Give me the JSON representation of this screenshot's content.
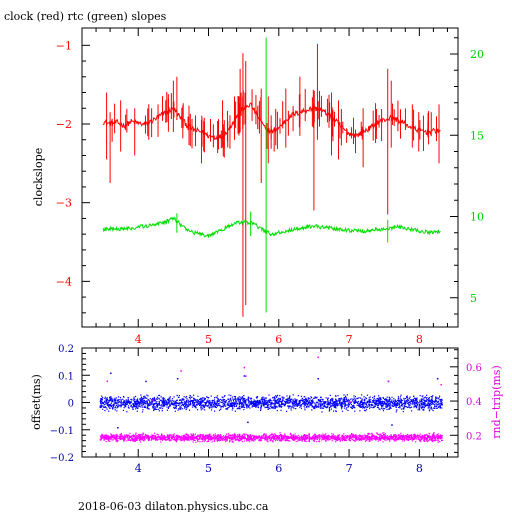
{
  "footer": "2018-06-03  dilaton.physics.ubc.ca",
  "colors": {
    "clock": "#ff0000",
    "rtc": "#00dd00",
    "offset": "#0000ff",
    "roundtrip": "#ff00ff",
    "axis_left_top": "#ff0000",
    "axis_right_top": "#00cc00",
    "axis_left_bottom": "#0000aa",
    "axis_right_bottom": "#dd00dd"
  },
  "chart_data": [
    {
      "type": "line",
      "title": "clock (red) rtc (green) slopes",
      "xlabel": "",
      "ylabel": "clockslope",
      "y2label": "",
      "xlim": [
        3.2,
        8.55
      ],
      "ylim": [
        -4.58,
        -0.78
      ],
      "y2lim": [
        3.2,
        21.6
      ],
      "xticks": [
        4,
        5,
        6,
        7,
        8
      ],
      "yticks": [
        -1,
        -2,
        -3,
        -4
      ],
      "y2ticks": [
        5,
        10,
        15,
        20
      ],
      "series": [
        {
          "name": "clock",
          "axis": "left",
          "color": "#ff0000",
          "x": [
            3.5,
            3.6,
            3.7,
            3.8,
            3.9,
            4.0,
            4.1,
            4.2,
            4.3,
            4.4,
            4.5,
            4.6,
            4.7,
            4.8,
            4.9,
            5.0,
            5.1,
            5.2,
            5.3,
            5.4,
            5.5,
            5.6,
            5.7,
            5.8,
            5.9,
            6.0,
            6.1,
            6.2,
            6.3,
            6.4,
            6.5,
            6.6,
            6.7,
            6.8,
            6.9,
            7.0,
            7.1,
            7.2,
            7.3,
            7.4,
            7.5,
            7.6,
            7.7,
            7.8,
            7.9,
            8.0,
            8.1,
            8.2,
            8.3
          ],
          "y": [
            -1.97,
            -2.0,
            -1.98,
            -2.02,
            -1.97,
            -1.99,
            -2.01,
            -1.96,
            -1.9,
            -1.85,
            -1.8,
            -1.92,
            -2.02,
            -2.08,
            -2.1,
            -2.15,
            -2.17,
            -2.16,
            -2.05,
            -1.9,
            -1.8,
            -1.75,
            -1.9,
            -2.05,
            -2.1,
            -2.05,
            -1.95,
            -1.88,
            -1.85,
            -1.82,
            -1.8,
            -1.82,
            -1.88,
            -1.95,
            -2.05,
            -2.12,
            -2.15,
            -2.1,
            -2.05,
            -1.98,
            -1.95,
            -1.92,
            -1.95,
            -2.0,
            -2.05,
            -2.08,
            -2.1,
            -2.09,
            -2.08
          ],
          "spikes": [
            {
              "x": 3.55,
              "low": -2.45,
              "high": -1.6
            },
            {
              "x": 3.6,
              "low": -2.75,
              "high": -1.85
            },
            {
              "x": 3.75,
              "low": -2.35,
              "high": -1.7
            },
            {
              "x": 3.95,
              "low": -2.4,
              "high": -1.8
            },
            {
              "x": 4.15,
              "low": -2.2,
              "high": -1.75
            },
            {
              "x": 4.5,
              "low": -2.1,
              "high": -1.45
            },
            {
              "x": 4.55,
              "low": -1.95,
              "high": -1.4
            },
            {
              "x": 4.9,
              "low": -2.5,
              "high": -1.95
            },
            {
              "x": 5.2,
              "low": -2.3,
              "high": -1.7
            },
            {
              "x": 5.37,
              "low": -2.2,
              "high": -1.65
            },
            {
              "x": 5.45,
              "low": -2.1,
              "high": -1.3
            },
            {
              "x": 5.49,
              "low": -4.45,
              "high": -1.1
            },
            {
              "x": 5.53,
              "low": -4.3,
              "high": -1.2
            },
            {
              "x": 5.75,
              "low": -2.75,
              "high": -1.55
            },
            {
              "x": 5.85,
              "low": -2.5,
              "high": -1.65
            },
            {
              "x": 6.1,
              "low": -2.3,
              "high": -1.55
            },
            {
              "x": 6.3,
              "low": -2.15,
              "high": -1.4
            },
            {
              "x": 6.5,
              "low": -3.1,
              "high": -1.75
            },
            {
              "x": 6.55,
              "low": -2.2,
              "high": -0.98
            },
            {
              "x": 6.75,
              "low": -2.4,
              "high": -1.6
            },
            {
              "x": 6.85,
              "low": -2.45,
              "high": -1.7
            },
            {
              "x": 7.2,
              "low": -2.55,
              "high": -1.8
            },
            {
              "x": 7.55,
              "low": -3.15,
              "high": -1.3
            },
            {
              "x": 7.6,
              "low": -2.3,
              "high": -1.45
            },
            {
              "x": 7.9,
              "low": -2.3,
              "high": -1.75
            },
            {
              "x": 8.28,
              "low": -2.5,
              "high": -1.75
            }
          ]
        },
        {
          "name": "rtc",
          "axis": "right",
          "color": "#00dd00",
          "x": [
            3.5,
            3.6,
            3.7,
            3.8,
            3.9,
            4.0,
            4.1,
            4.2,
            4.3,
            4.4,
            4.5,
            4.6,
            4.7,
            4.8,
            4.9,
            5.0,
            5.1,
            5.2,
            5.3,
            5.4,
            5.5,
            5.6,
            5.7,
            5.8,
            5.9,
            6.0,
            6.1,
            6.2,
            6.3,
            6.4,
            6.5,
            6.6,
            6.7,
            6.8,
            6.9,
            7.0,
            7.1,
            7.2,
            7.3,
            7.4,
            7.5,
            7.6,
            7.7,
            7.8,
            7.9,
            8.0,
            8.1,
            8.2,
            8.3
          ],
          "y": [
            9.2,
            9.25,
            9.2,
            9.3,
            9.25,
            9.35,
            9.4,
            9.5,
            9.6,
            9.7,
            9.9,
            9.5,
            9.2,
            9.0,
            8.9,
            8.8,
            9.0,
            9.2,
            9.4,
            9.6,
            9.7,
            9.6,
            9.4,
            9.1,
            8.9,
            9.0,
            9.1,
            9.2,
            9.3,
            9.35,
            9.4,
            9.35,
            9.3,
            9.25,
            9.2,
            9.15,
            9.1,
            9.1,
            9.15,
            9.2,
            9.25,
            9.3,
            9.35,
            9.3,
            9.2,
            9.1,
            9.05,
            9.05,
            9.1
          ],
          "spikes": [
            {
              "x": 5.82,
              "low": 4.1,
              "high": 21.0
            },
            {
              "x": 5.6,
              "low": 8.8,
              "high": 10.3
            },
            {
              "x": 4.55,
              "low": 9.0,
              "high": 10.2
            },
            {
              "x": 7.55,
              "low": 8.4,
              "high": 9.8
            }
          ]
        }
      ]
    },
    {
      "type": "scatter",
      "title": "",
      "xlabel": "",
      "ylabel": "offset(ms)",
      "y2label": "rnd−trip(ms)",
      "xlim": [
        3.2,
        8.55
      ],
      "ylim": [
        -0.2,
        0.2
      ],
      "y2lim": [
        0.073,
        0.71
      ],
      "xticks": [
        4,
        5,
        6,
        7,
        8
      ],
      "yticks": [
        0.2,
        0.1,
        0,
        -0.1,
        -0.2
      ],
      "y2ticks": [
        0.2,
        0.4,
        0.6
      ],
      "ytick_labels": [
        "0.2",
        "0.1",
        "0",
        "−0.1",
        "−0.2"
      ],
      "series": [
        {
          "name": "offset",
          "axis": "left",
          "color": "#0000ff",
          "x_range": [
            3.45,
            8.32
          ],
          "center": 0.0,
          "band": 0.035,
          "outliers": [
            [
              3.6,
              0.11
            ],
            [
              4.1,
              0.08
            ],
            [
              4.55,
              0.09
            ],
            [
              5.5,
              0.1
            ],
            [
              6.55,
              0.09
            ],
            [
              7.55,
              0.08
            ],
            [
              8.25,
              0.09
            ],
            [
              3.7,
              -0.09
            ],
            [
              5.55,
              -0.07
            ],
            [
              7.6,
              -0.08
            ]
          ]
        },
        {
          "name": "roundtrip",
          "axis": "right",
          "color": "#ff00ff",
          "x_range": [
            3.45,
            8.32
          ],
          "center": 0.19,
          "band": 0.03,
          "outliers": [
            [
              3.55,
              0.52
            ],
            [
              4.6,
              0.58
            ],
            [
              5.5,
              0.6
            ],
            [
              5.52,
              0.55
            ],
            [
              6.55,
              0.66
            ],
            [
              7.55,
              0.52
            ],
            [
              8.3,
              0.5
            ],
            [
              4.2,
              0.41
            ],
            [
              7.0,
              0.4
            ]
          ]
        }
      ]
    }
  ]
}
